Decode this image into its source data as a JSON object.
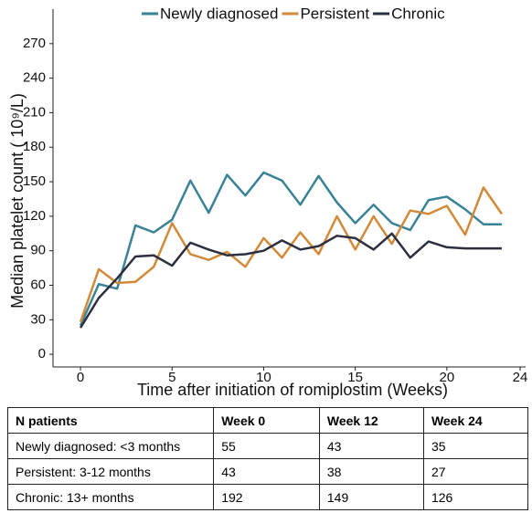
{
  "chart_data": {
    "type": "line",
    "y_label": "Median platelet count ( 10⁹/L)",
    "x_label": "Time after initiation of romiplostim (Weeks)",
    "x": [
      0,
      1,
      2,
      3,
      4,
      5,
      6,
      7,
      8,
      9,
      10,
      11,
      12,
      13,
      14,
      15,
      16,
      17,
      18,
      19,
      20,
      21,
      22,
      23
    ],
    "series": [
      {
        "name": "Newly diagnosed",
        "color": "#3a8296",
        "values": [
          25,
          61,
          57,
          112,
          106,
          117,
          151,
          123,
          156,
          138,
          158,
          151,
          130,
          155,
          132,
          114,
          130,
          114,
          108,
          134,
          137,
          126,
          113,
          113
        ]
      },
      {
        "name": "Persistent",
        "color": "#d08a3a",
        "values": [
          28,
          74,
          62,
          63,
          76,
          114,
          87,
          82,
          89,
          76,
          101,
          84,
          106,
          87,
          120,
          91,
          120,
          96,
          125,
          122,
          129,
          104,
          145,
          122
        ]
      },
      {
        "name": "Chronic",
        "color": "#2c2f3f",
        "values": [
          23,
          49,
          66,
          85,
          86,
          77,
          97,
          91,
          86,
          87,
          90,
          99,
          91,
          94,
          103,
          101,
          91,
          105,
          84,
          98,
          93,
          92,
          92,
          92
        ]
      }
    ],
    "xlim": [
      -1.5,
      24.3
    ],
    "xticks": [
      0,
      5,
      10,
      15,
      20,
      24
    ],
    "ylim": [
      -11,
      300
    ],
    "yticks": [
      0,
      30,
      60,
      90,
      120,
      150,
      180,
      210,
      240,
      270
    ],
    "legend": "top"
  },
  "table": {
    "header": [
      "N patients",
      "Week 0",
      "Week 12",
      "Week 24"
    ],
    "rows": [
      [
        "Newly diagnosed: <3 months",
        "55",
        "43",
        "35"
      ],
      [
        "Persistent: 3-12 months",
        "43",
        "38",
        "27"
      ],
      [
        "Chronic: 13+ months",
        "192",
        "149",
        "126"
      ]
    ]
  }
}
